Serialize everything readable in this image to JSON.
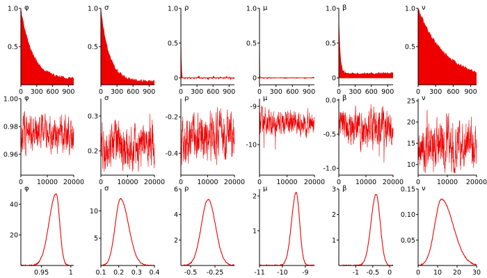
{
  "figure_title": "",
  "params": [
    "φ",
    "σ",
    "ρ",
    "μ",
    "β",
    "ν"
  ],
  "colors": {
    "series": "#ee0000",
    "axis": "#000000",
    "background": "#ffffff"
  },
  "chart_data": [
    {
      "type": "area",
      "row": "autocorrelation",
      "panels": [
        {
          "title": "φ",
          "xlim": [
            0,
            1000
          ],
          "ylim": [
            0,
            1.0
          ],
          "xticks": [
            0,
            300,
            600,
            900
          ],
          "yticks": [
            0.5,
            1.0
          ],
          "ytick_labels": [
            "0.5",
            "1.0"
          ],
          "decay": 220,
          "floor": 0.08,
          "noise": 0.02
        },
        {
          "title": "σ",
          "xlim": [
            0,
            1000
          ],
          "ylim": [
            0,
            1.0
          ],
          "xticks": [
            0,
            300,
            600,
            900
          ],
          "yticks": [
            0.5,
            1.0
          ],
          "ytick_labels": [
            "0.5",
            "1.0"
          ],
          "decay": 160,
          "floor": 0.05,
          "noise": 0.02
        },
        {
          "title": "ρ",
          "xlim": [
            0,
            1000
          ],
          "ylim": [
            -0.1,
            1.0
          ],
          "xticks": [
            0,
            300,
            600,
            900
          ],
          "yticks": [
            0,
            0.5,
            1.0
          ],
          "ytick_labels": [
            "0",
            "0.5",
            "1.0"
          ],
          "decay": 8,
          "floor": 0.0,
          "noise": 0.03
        },
        {
          "title": "μ",
          "xlim": [
            0,
            1000
          ],
          "ylim": [
            -0.1,
            1.0
          ],
          "xticks": [
            0,
            300,
            600,
            900
          ],
          "yticks": [
            0,
            0.5,
            1.0
          ],
          "ytick_labels": [
            "0",
            "0.5",
            "1.0"
          ],
          "decay": 3,
          "floor": 0.0,
          "noise": 0.015
        },
        {
          "title": "β",
          "xlim": [
            0,
            1000
          ],
          "ylim": [
            -0.1,
            1.0
          ],
          "xticks": [
            0,
            300,
            600,
            900
          ],
          "yticks": [
            0,
            0.5,
            1.0
          ],
          "ytick_labels": [
            "0",
            "0.5",
            "1.0"
          ],
          "decay": 25,
          "floor": 0.07,
          "noise": 0.015
        },
        {
          "title": "ν",
          "xlim": [
            0,
            1000
          ],
          "ylim": [
            0,
            1.0
          ],
          "xticks": [
            0,
            300,
            600,
            900
          ],
          "yticks": [
            0.5,
            1.0
          ],
          "ytick_labels": [
            "0.5",
            "1.0"
          ],
          "decay": 480,
          "floor": 0.05,
          "noise": 0.02
        }
      ]
    },
    {
      "type": "line",
      "row": "trace",
      "panels": [
        {
          "title": "φ",
          "xlim": [
            0,
            20000
          ],
          "ylim": [
            0.945,
            1.0
          ],
          "xticks": [
            0,
            10000,
            20000
          ],
          "yticks": [
            0.96,
            0.98,
            1.0
          ],
          "ytick_labels": [
            "0.96",
            "0.98",
            "1.00"
          ],
          "mean": 0.975,
          "sd": 0.007,
          "min": 0.955,
          "max": 0.995
        },
        {
          "title": "σ",
          "xlim": [
            0,
            20000
          ],
          "ylim": [
            0.13,
            0.35
          ],
          "xticks": [
            0,
            10000,
            20000
          ],
          "yticks": [
            0.2,
            0.3
          ],
          "ytick_labels": [
            "0.2",
            "0.3"
          ],
          "mean": 0.215,
          "sd": 0.035,
          "min": 0.14,
          "max": 0.34
        },
        {
          "title": "ρ",
          "xlim": [
            0,
            20000
          ],
          "ylim": [
            -0.52,
            -0.1
          ],
          "xticks": [
            0,
            10000,
            20000
          ],
          "yticks": [
            -0.4,
            -0.2
          ],
          "ytick_labels": [
            "-0.4",
            "-0.2"
          ],
          "mean": -0.31,
          "sd": 0.07,
          "min": -0.5,
          "max": -0.12
        },
        {
          "title": "μ",
          "xlim": [
            0,
            20000
          ],
          "ylim": [
            -10.8,
            -8.8
          ],
          "xticks": [
            0,
            10000,
            20000
          ],
          "yticks": [
            -10,
            -9
          ],
          "ytick_labels": [
            "-10",
            "-9"
          ],
          "mean": -9.4,
          "sd": 0.18,
          "min": -10.7,
          "max": -9.0
        },
        {
          "title": "β",
          "xlim": [
            0,
            20000
          ],
          "ylim": [
            -1.1,
            0.02
          ],
          "xticks": [
            0,
            10000,
            20000
          ],
          "yticks": [
            -1.0,
            -0.5,
            0.0
          ],
          "ytick_labels": [
            "-1.0",
            "-0.5",
            "0.0"
          ],
          "mean": -0.42,
          "sd": 0.15,
          "min": -1.05,
          "max": -0.05
        },
        {
          "title": "ν",
          "xlim": [
            0,
            20000
          ],
          "ylim": [
            7.5,
            25.5
          ],
          "xticks": [
            0,
            10000,
            20000
          ],
          "yticks": [
            10,
            15,
            20,
            25
          ],
          "ytick_labels": [
            "10",
            "15",
            "20",
            "25"
          ],
          "mean": 14.5,
          "sd": 3.2,
          "min": 8,
          "max": 24
        }
      ]
    },
    {
      "type": "line",
      "row": "posterior_density",
      "panels": [
        {
          "title": "φ",
          "xlim": [
            0.915,
            1.005
          ],
          "ylim": [
            0,
            50
          ],
          "xticks": [
            0.95,
            1.0
          ],
          "xtick_labels": [
            "0.95",
            "1"
          ],
          "yticks": [
            20,
            40
          ],
          "ytick_labels": [
            "20",
            "40"
          ],
          "mode": 0.975,
          "peak": 47,
          "left_sd": 0.012,
          "right_sd": 0.006
        },
        {
          "title": "σ",
          "xlim": [
            0.1,
            0.4
          ],
          "ylim": [
            0,
            14
          ],
          "xticks": [
            0.1,
            0.2,
            0.3,
            0.4
          ],
          "xtick_labels": [
            "0.1",
            "0.2",
            "0.3",
            "0.4"
          ],
          "yticks": [
            5,
            10
          ],
          "ytick_labels": [
            "5",
            "10"
          ],
          "mode": 0.21,
          "peak": 12.2,
          "left_sd": 0.03,
          "right_sd": 0.045
        },
        {
          "title": "ρ",
          "xlim": [
            -0.6,
            -0.05
          ],
          "ylim": [
            0,
            6
          ],
          "xticks": [
            -0.5,
            -0.25
          ],
          "xtick_labels": [
            "-0.5",
            "-0.25"
          ],
          "yticks": [
            2,
            4,
            6
          ],
          "ytick_labels": [
            "2",
            "4",
            "6"
          ],
          "mode": -0.32,
          "peak": 5.2,
          "left_sd": 0.07,
          "right_sd": 0.075
        },
        {
          "title": "μ",
          "xlim": [
            -11,
            -8.6
          ],
          "ylim": [
            0,
            2.2
          ],
          "xticks": [
            -11,
            -10,
            -9
          ],
          "xtick_labels": [
            "-11",
            "-10",
            "-9"
          ],
          "yticks": [
            1,
            2
          ],
          "ytick_labels": [
            "1",
            "2"
          ],
          "mode": -9.4,
          "peak": 2.1,
          "left_sd": 0.2,
          "right_sd": 0.15
        },
        {
          "title": "β",
          "xlim": [
            -1.5,
            0.1
          ],
          "ylim": [
            0,
            3
          ],
          "xticks": [
            -1,
            -0.5,
            0
          ],
          "xtick_labels": [
            "-1",
            "-0.5",
            "0"
          ],
          "yticks": [
            1,
            2,
            3
          ],
          "ytick_labels": [
            "1",
            "2",
            "3"
          ],
          "mode": -0.4,
          "peak": 2.8,
          "left_sd": 0.15,
          "right_sd": 0.12
        },
        {
          "title": "ν",
          "xlim": [
            0,
            30
          ],
          "ylim": [
            0,
            0.15
          ],
          "xticks": [
            0,
            10,
            20,
            30
          ],
          "xtick_labels": [
            "0",
            "10",
            "20",
            "30"
          ],
          "yticks": [
            0.05,
            0.1,
            0.15
          ],
          "ytick_labels": [
            "0.05",
            "0.10",
            "0.15"
          ],
          "mode": 12,
          "peak": 0.13,
          "left_sd": 3.5,
          "right_sd": 6
        }
      ]
    }
  ]
}
